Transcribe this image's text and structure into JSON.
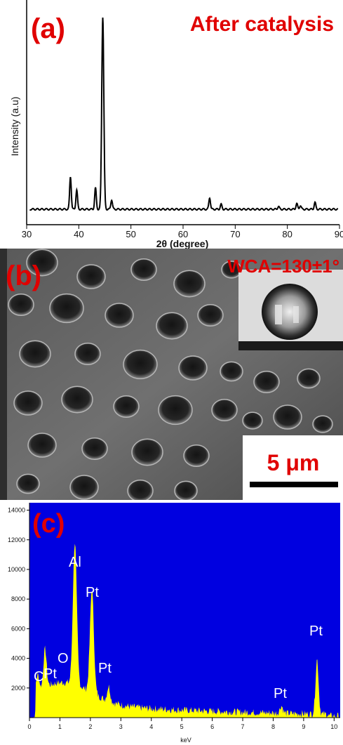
{
  "chart_data": [
    {
      "panel": "(a)",
      "type": "line",
      "title": "After catalysis",
      "xlabel": "2θ (degree)",
      "ylabel": "Intensity (a.u)",
      "xlim": [
        30,
        90
      ],
      "x_ticks": [
        "30",
        "40",
        "50",
        "60",
        "70",
        "80",
        "90"
      ],
      "peaks": [
        {
          "x": 38.4,
          "y": 0.17
        },
        {
          "x": 39.6,
          "y": 0.1
        },
        {
          "x": 43.2,
          "y": 0.11
        },
        {
          "x": 44.6,
          "y": 1.0
        },
        {
          "x": 46.3,
          "y": 0.05
        },
        {
          "x": 65.1,
          "y": 0.06
        },
        {
          "x": 67.3,
          "y": 0.025
        },
        {
          "x": 78.3,
          "y": 0.015
        },
        {
          "x": 81.8,
          "y": 0.03
        },
        {
          "x": 82.5,
          "y": 0.02
        },
        {
          "x": 85.3,
          "y": 0.035
        }
      ],
      "baseline": 0.0
    },
    {
      "panel": "(c)",
      "type": "area",
      "xlabel": "keV",
      "xlim": [
        0,
        10.2
      ],
      "ylim": [
        0,
        14500
      ],
      "x_ticks": [
        "0",
        "1",
        "2",
        "3",
        "4",
        "5",
        "6",
        "7",
        "8",
        "9",
        "10"
      ],
      "y_ticks": [
        "2000",
        "4000",
        "6000",
        "8000",
        "10000",
        "12000",
        "14000"
      ],
      "peaks": [
        {
          "label": "C",
          "x": 0.27,
          "y": 2200
        },
        {
          "label": "Pt",
          "x": 0.5,
          "y": 2400
        },
        {
          "label": "O",
          "x": 0.52,
          "y": 2600
        },
        {
          "label": "Al",
          "x": 1.49,
          "y": 10800
        },
        {
          "label": "Pt",
          "x": 2.05,
          "y": 8200
        },
        {
          "label": "Pt",
          "x": 2.6,
          "y": 2200
        },
        {
          "label": "Pt",
          "x": 8.27,
          "y": 1700
        },
        {
          "label": "Pt",
          "x": 9.44,
          "y": 4900
        }
      ],
      "colors": {
        "background": "#0000e0",
        "fill": "#ffff00"
      }
    }
  ],
  "panel_a": {
    "label": "(a)",
    "title": "After catalysis"
  },
  "panel_b": {
    "label": "(b)",
    "contact_angle": "WCA=130±1°",
    "scale_bar": "5 μm"
  },
  "panel_c": {
    "label": "(c)",
    "peak_labels": {
      "c": "C",
      "pt1": "Pt",
      "o": "O",
      "al": "Al",
      "pt2": "Pt",
      "pt3": "Pt",
      "pt4": "Pt",
      "pt5": "Pt"
    }
  },
  "colors": {
    "label_red": "#e00000",
    "eds_blue": "#0000e0",
    "eds_yellow": "#ffff00"
  }
}
